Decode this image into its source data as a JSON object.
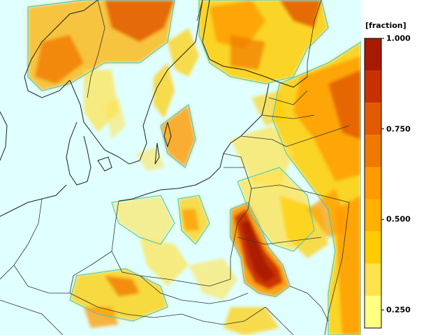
{
  "legend": {
    "unit": "[fraction]",
    "ticks": [
      {
        "value": 1.0,
        "label": "1.000"
      },
      {
        "value": 0.75,
        "label": "0.750"
      },
      {
        "value": 0.5,
        "label": "0.500"
      },
      {
        "value": 0.25,
        "label": "0.250"
      }
    ],
    "colors": [
      "#ffff80",
      "#ffe24d",
      "#ffcc00",
      "#ffb000",
      "#ff9a00",
      "#f07a00",
      "#e25a00",
      "#c83000",
      "#a81a00"
    ],
    "min": 0.2,
    "max": 1.0
  },
  "map_colors": {
    "sea": "#e0ffff",
    "land": "#e0ffff",
    "coast": "#1f1f1f",
    "contour": "#35c9cf"
  }
}
